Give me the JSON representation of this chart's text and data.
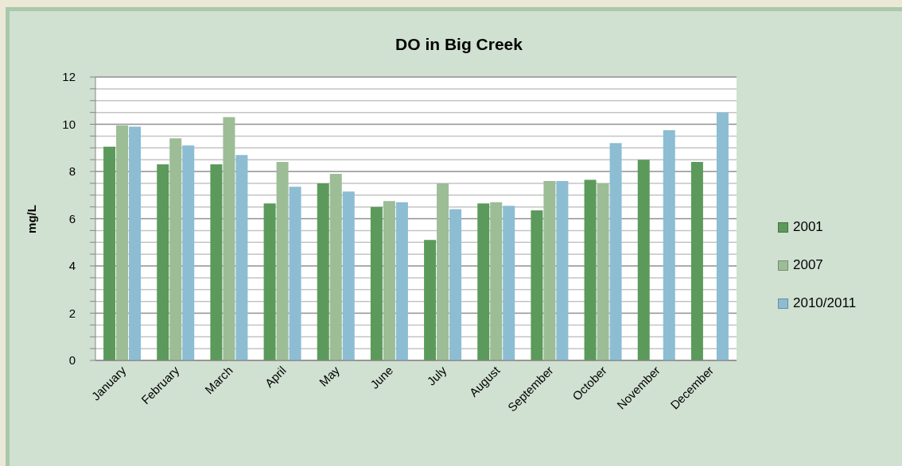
{
  "chart_data": {
    "type": "bar",
    "title": "DO in Big Creek",
    "ylabel": "mg/L",
    "categories": [
      "January",
      "February",
      "March",
      "April",
      "May",
      "June",
      "July",
      "August",
      "September",
      "October",
      "November",
      "December"
    ],
    "series": [
      {
        "name": "2001",
        "color": "#5b9a5b",
        "values": [
          9.05,
          8.3,
          8.3,
          6.65,
          7.5,
          6.5,
          5.1,
          6.65,
          6.35,
          7.65,
          8.5,
          8.4
        ]
      },
      {
        "name": "2007",
        "color": "#9cbd96",
        "values": [
          9.95,
          9.4,
          10.3,
          8.4,
          7.9,
          6.75,
          7.5,
          6.7,
          7.6,
          7.5,
          null,
          null
        ]
      },
      {
        "name": "2010/2011",
        "color": "#8cbdd3",
        "values": [
          9.9,
          9.1,
          8.7,
          7.35,
          7.15,
          6.7,
          6.4,
          6.55,
          7.6,
          9.2,
          9.75,
          10.5
        ]
      }
    ],
    "ylim": [
      0,
      12
    ],
    "yticks": [
      0,
      {
        "value": 0.5,
        "label": null
      },
      {
        "value": 1,
        "label": null
      },
      {
        "value": 1.5,
        "label": null
      },
      2,
      {
        "value": 2.5,
        "label": null
      },
      {
        "value": 3,
        "label": null
      },
      {
        "value": 3.5,
        "label": null
      },
      4,
      {
        "value": 4.5,
        "label": null
      },
      {
        "value": 5,
        "label": null
      },
      {
        "value": 5.5,
        "label": null
      },
      6,
      {
        "value": 6.5,
        "label": null
      },
      {
        "value": 7,
        "label": null
      },
      {
        "value": 7.5,
        "label": null
      },
      8,
      {
        "value": 8.5,
        "label": null
      },
      {
        "value": 9,
        "label": null
      },
      {
        "value": 9.5,
        "label": null
      },
      10,
      {
        "value": 10.5,
        "label": null
      },
      {
        "value": 11,
        "label": null
      },
      {
        "value": 11.5,
        "label": null
      },
      12
    ],
    "grid": "y",
    "legend": "right"
  }
}
